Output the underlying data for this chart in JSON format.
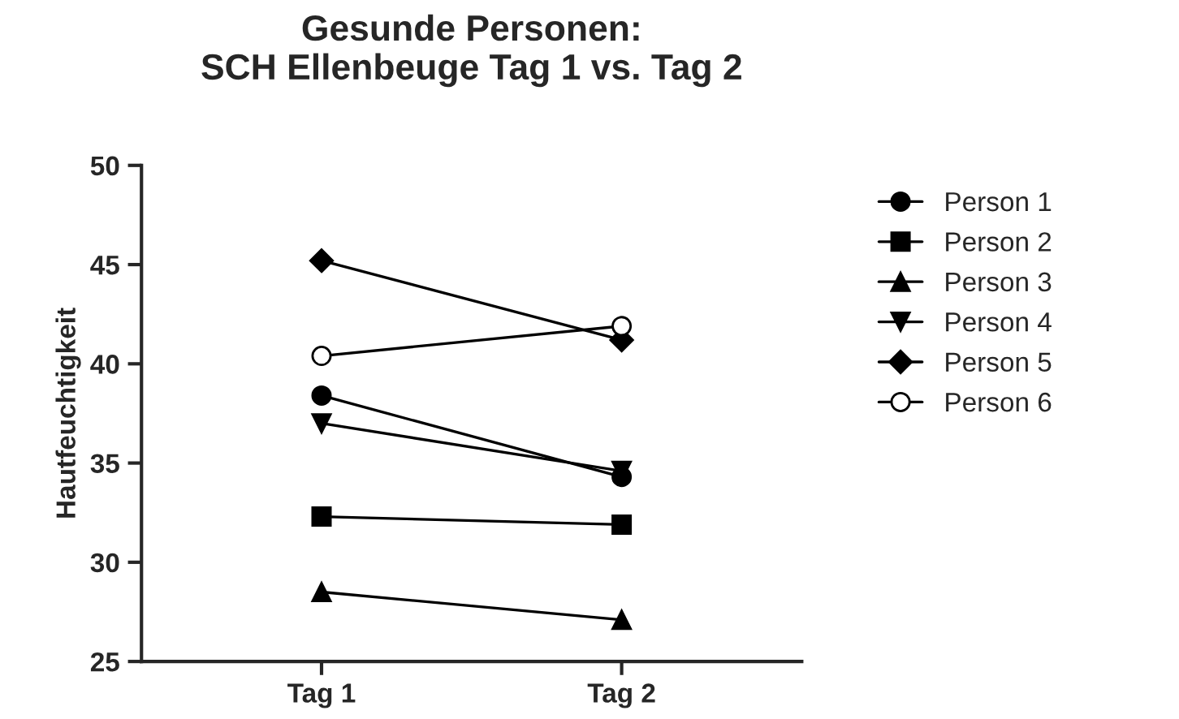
{
  "chart_data": {
    "type": "line",
    "title": "Gesunde Personen:\nSCH Ellenbeuge Tag 1 vs. Tag 2",
    "ylabel": "Hautfeuchtigkeit",
    "categories": [
      "Tag 1",
      "Tag 2"
    ],
    "series": [
      {
        "name": "Person 1",
        "color": "#000000",
        "marker": "circle",
        "values": [
          38.4,
          34.3
        ]
      },
      {
        "name": "Person 2",
        "color": "#000000",
        "marker": "square",
        "values": [
          32.3,
          31.9
        ]
      },
      {
        "name": "Person 3",
        "color": "#000000",
        "marker": "triangle",
        "values": [
          28.5,
          27.1
        ]
      },
      {
        "name": "Person 4",
        "color": "#000000",
        "marker": "triangle_down",
        "values": [
          37.0,
          34.6
        ]
      },
      {
        "name": "Person 5",
        "color": "#000000",
        "marker": "diamond",
        "values": [
          45.2,
          41.2
        ]
      },
      {
        "name": "Person 6",
        "color": "#000000",
        "marker": "circle_open",
        "values": [
          40.4,
          41.9
        ]
      }
    ],
    "ylim": [
      25,
      50
    ],
    "yticks": [
      25,
      30,
      35,
      40,
      45,
      50
    ],
    "grid": false,
    "legend": "right"
  }
}
